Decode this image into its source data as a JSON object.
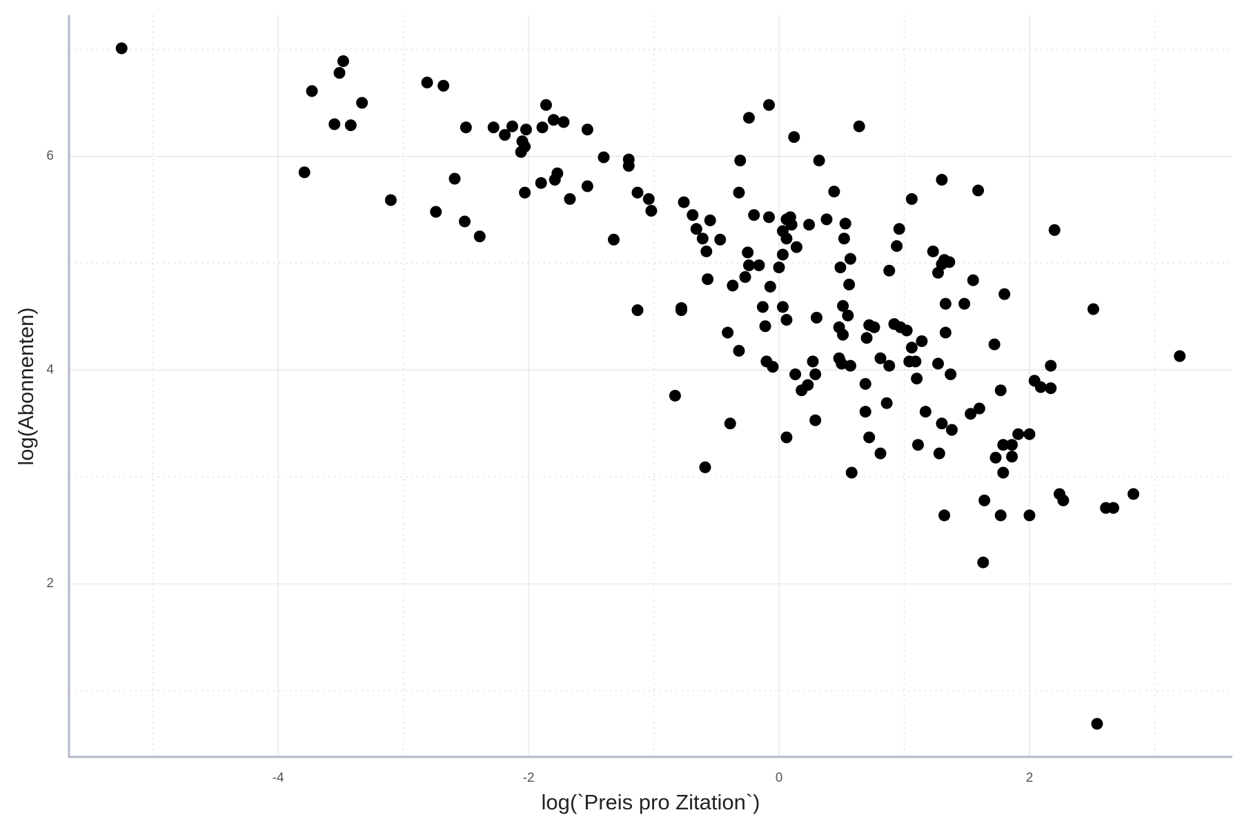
{
  "chart_data": {
    "type": "scatter",
    "x_label": "log(`Preis pro Zitation`)",
    "y_label": "log(Abonnenten)",
    "x": [
      -5.25,
      -3.73,
      -3.48,
      -3.51,
      -3.33,
      -3.55,
      -3.42,
      -3.79,
      -3.1,
      -2.81,
      -2.68,
      -2.5,
      -2.59,
      -2.74,
      -2.51,
      -2.39,
      -2.28,
      -2.19,
      -2.13,
      -2.05,
      -2.03,
      -2.06,
      -2.02,
      -1.86,
      -1.89,
      -1.8,
      -1.72,
      -2.03,
      -1.9,
      -1.79,
      -1.77,
      -1.67,
      -1.53,
      -1.53,
      -1.4,
      -1.2,
      -1.2,
      -1.13,
      -1.04,
      -1.02,
      -1.32,
      -1.13,
      -0.76,
      -0.69,
      -0.66,
      -0.61,
      -0.58,
      -0.55,
      -0.47,
      -0.57,
      -0.78,
      -0.78,
      -0.83,
      -0.59,
      -0.39,
      -0.41,
      -0.32,
      -0.37,
      -0.27,
      -0.24,
      -0.25,
      -0.16,
      -0.2,
      -0.32,
      -0.31,
      -0.24,
      -0.08,
      -0.08,
      -0.13,
      -0.11,
      -0.07,
      -0.1,
      -0.05,
      0.0,
      0.03,
      0.03,
      0.06,
      0.06,
      0.09,
      0.1,
      0.14,
      0.03,
      0.06,
      0.12,
      0.32,
      0.24,
      0.38,
      0.44,
      0.64,
      0.13,
      0.18,
      0.23,
      0.27,
      0.29,
      0.3,
      0.29,
      0.06,
      0.53,
      0.52,
      0.57,
      0.49,
      0.56,
      0.51,
      0.55,
      0.48,
      0.51,
      0.48,
      0.5,
      0.57,
      0.58,
      0.69,
      0.69,
      0.72,
      0.7,
      0.72,
      0.76,
      0.81,
      0.88,
      0.86,
      0.81,
      0.88,
      0.94,
      0.96,
      0.92,
      0.97,
      1.02,
      1.06,
      1.06,
      1.14,
      1.04,
      1.09,
      1.1,
      1.17,
      1.11,
      1.3,
      1.23,
      1.27,
      1.3,
      1.32,
      1.36,
      1.33,
      1.33,
      1.27,
      1.37,
      1.3,
      1.38,
      1.28,
      1.32,
      1.48,
      1.55,
      1.59,
      1.53,
      1.6,
      1.72,
      1.8,
      1.77,
      1.73,
      1.79,
      1.86,
      1.86,
      1.91,
      2.0,
      1.79,
      1.64,
      1.77,
      1.63,
      2.0,
      2.04,
      2.09,
      2.17,
      2.17,
      2.2,
      2.24,
      2.27,
      2.51,
      2.61,
      2.67,
      2.83,
      2.54,
      3.2
    ],
    "y": [
      7.01,
      6.61,
      6.89,
      6.78,
      6.5,
      6.3,
      6.29,
      5.85,
      5.59,
      6.69,
      6.66,
      6.27,
      5.79,
      5.48,
      5.39,
      5.25,
      6.27,
      6.2,
      6.28,
      6.14,
      6.09,
      6.04,
      6.25,
      6.48,
      6.27,
      6.34,
      6.32,
      5.66,
      5.75,
      5.78,
      5.84,
      5.6,
      6.25,
      5.72,
      5.99,
      5.97,
      5.91,
      5.66,
      5.6,
      5.49,
      5.22,
      4.56,
      5.57,
      5.45,
      5.32,
      5.23,
      5.11,
      5.4,
      5.22,
      4.85,
      4.58,
      4.56,
      3.76,
      3.09,
      3.5,
      4.35,
      4.18,
      4.79,
      4.87,
      4.98,
      5.1,
      4.98,
      5.45,
      5.66,
      5.96,
      6.36,
      6.48,
      5.43,
      4.59,
      4.41,
      4.78,
      4.08,
      4.03,
      4.96,
      5.3,
      5.08,
      5.41,
      5.23,
      5.43,
      5.36,
      5.15,
      4.59,
      4.47,
      6.18,
      5.96,
      5.36,
      5.41,
      5.67,
      6.28,
      3.96,
      3.81,
      3.86,
      4.08,
      3.96,
      4.49,
      3.53,
      3.37,
      5.37,
      5.23,
      5.04,
      4.96,
      4.8,
      4.6,
      4.51,
      4.4,
      4.33,
      4.11,
      4.06,
      4.04,
      3.04,
      3.87,
      3.61,
      3.37,
      4.3,
      4.42,
      4.4,
      4.11,
      4.04,
      3.69,
      3.22,
      4.93,
      5.16,
      5.32,
      4.43,
      4.4,
      4.37,
      5.6,
      4.21,
      4.27,
      4.08,
      4.08,
      3.92,
      3.61,
      3.3,
      5.78,
      5.11,
      4.91,
      4.99,
      5.03,
      5.01,
      4.62,
      4.35,
      4.06,
      3.96,
      3.5,
      3.44,
      3.22,
      2.64,
      4.62,
      4.84,
      5.68,
      3.59,
      3.64,
      4.24,
      4.71,
      3.81,
      3.18,
      3.3,
      3.3,
      3.19,
      3.4,
      3.4,
      3.04,
      2.78,
      2.64,
      2.2,
      2.64,
      3.9,
      3.84,
      3.83,
      4.04,
      5.31,
      2.84,
      2.78,
      4.57,
      2.71,
      2.71,
      2.84,
      0.69,
      4.13
    ],
    "color": "#000000",
    "xlim": [
      -5.67,
      3.62
    ],
    "ylim": [
      0.38,
      7.32
    ],
    "xticks": [
      -4,
      -2,
      0,
      2
    ],
    "yticks": [
      2,
      4,
      6
    ],
    "grid": true
  }
}
